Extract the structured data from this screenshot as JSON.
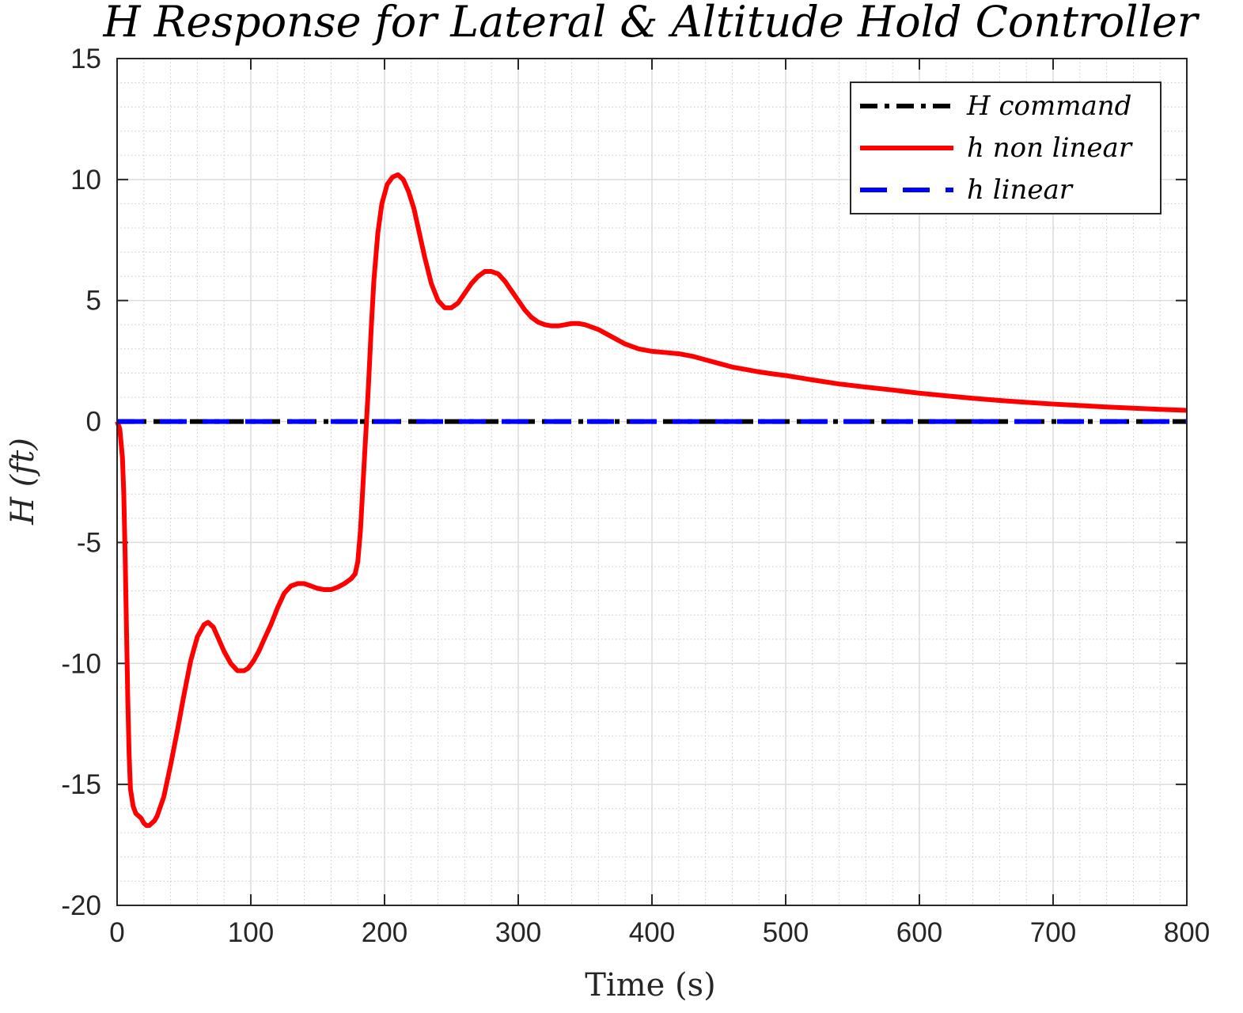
{
  "chart_data": {
    "type": "line",
    "title": "H Response for Lateral & Altitude Hold Controller",
    "xlabel": "Time (s)",
    "ylabel": "H (ft)",
    "xlim": [
      0,
      800
    ],
    "ylim": [
      -20,
      15
    ],
    "x_ticks": [
      0,
      100,
      200,
      300,
      400,
      500,
      600,
      700,
      800
    ],
    "y_ticks": [
      -20,
      -15,
      -10,
      -5,
      0,
      5,
      10,
      15
    ],
    "x_tick_labels": [
      "0",
      "100",
      "200",
      "300",
      "400",
      "500",
      "600",
      "700",
      "800"
    ],
    "y_tick_labels": [
      "-20",
      "-15",
      "-10",
      "-5",
      "0",
      "5",
      "10",
      "15"
    ],
    "grid": true,
    "minor_grid": true,
    "legend_position": "top-right",
    "series": [
      {
        "name": "H command",
        "color": "#000000",
        "style": "dash-dot",
        "x": [
          0,
          800
        ],
        "y": [
          0,
          0
        ]
      },
      {
        "name": "h non linear",
        "color": "#ff0000",
        "style": "solid",
        "x": [
          0,
          2,
          4,
          5,
          6,
          7,
          8,
          9,
          10,
          12,
          14,
          16,
          18,
          20,
          22,
          24,
          26,
          28,
          30,
          35,
          40,
          45,
          50,
          55,
          60,
          65,
          68,
          72,
          76,
          80,
          85,
          90,
          95,
          98,
          102,
          106,
          110,
          115,
          120,
          125,
          130,
          135,
          140,
          145,
          150,
          155,
          160,
          165,
          170,
          175,
          178,
          180,
          182,
          184,
          186,
          188,
          190,
          192,
          195,
          198,
          202,
          206,
          210,
          214,
          218,
          222,
          226,
          230,
          235,
          240,
          245,
          250,
          255,
          260,
          265,
          270,
          275,
          280,
          285,
          290,
          295,
          300,
          305,
          310,
          315,
          320,
          325,
          330,
          335,
          340,
          345,
          350,
          355,
          360,
          370,
          380,
          390,
          400,
          410,
          420,
          430,
          440,
          450,
          460,
          470,
          480,
          490,
          500,
          520,
          540,
          560,
          580,
          600,
          620,
          640,
          660,
          680,
          700,
          720,
          740,
          760,
          780,
          800
        ],
        "y": [
          0,
          -0.3,
          -1.5,
          -3.0,
          -5.5,
          -8.5,
          -11.5,
          -13.8,
          -15.2,
          -15.9,
          -16.2,
          -16.3,
          -16.4,
          -16.6,
          -16.7,
          -16.7,
          -16.6,
          -16.5,
          -16.3,
          -15.5,
          -14.2,
          -12.8,
          -11.3,
          -9.9,
          -8.9,
          -8.4,
          -8.3,
          -8.5,
          -9.0,
          -9.5,
          -10.0,
          -10.3,
          -10.3,
          -10.2,
          -9.9,
          -9.5,
          -9.0,
          -8.4,
          -7.7,
          -7.1,
          -6.8,
          -6.7,
          -6.7,
          -6.8,
          -6.9,
          -6.95,
          -6.95,
          -6.85,
          -6.7,
          -6.5,
          -6.3,
          -5.8,
          -4.5,
          -2.5,
          -0.5,
          1.5,
          3.8,
          5.8,
          7.8,
          9.0,
          9.8,
          10.1,
          10.2,
          10.0,
          9.5,
          8.8,
          7.8,
          6.8,
          5.7,
          5.0,
          4.7,
          4.7,
          4.9,
          5.3,
          5.7,
          6.0,
          6.2,
          6.2,
          6.1,
          5.8,
          5.4,
          5.0,
          4.6,
          4.3,
          4.1,
          4.0,
          3.95,
          3.95,
          4.0,
          4.05,
          4.05,
          4.0,
          3.9,
          3.8,
          3.5,
          3.2,
          3.0,
          2.9,
          2.85,
          2.8,
          2.7,
          2.55,
          2.4,
          2.25,
          2.15,
          2.05,
          1.97,
          1.9,
          1.72,
          1.55,
          1.42,
          1.3,
          1.17,
          1.06,
          0.96,
          0.87,
          0.79,
          0.72,
          0.66,
          0.6,
          0.55,
          0.5,
          0.46
        ]
      },
      {
        "name": "h linear",
        "color": "#0000ff",
        "style": "dashed",
        "x": [
          0,
          800
        ],
        "y": [
          0,
          0
        ]
      }
    ]
  }
}
